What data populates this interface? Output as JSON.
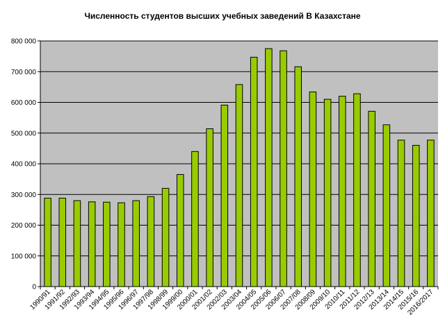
{
  "chart_data": {
    "type": "bar",
    "title": "Численность студентов высших учебных заведений В Казахстане",
    "xlabel": "",
    "ylabel": "",
    "ylim": [
      0,
      800000
    ],
    "y_ticks": [
      0,
      100000,
      200000,
      300000,
      400000,
      500000,
      600000,
      700000,
      800000
    ],
    "y_tick_labels": [
      "0",
      "100 000",
      "200 000",
      "300 000",
      "400 000",
      "500 000",
      "600 000",
      "700 000",
      "800 000"
    ],
    "grid": true,
    "legend": "none",
    "categories": [
      "1990/91",
      "1991/92",
      "1992/93",
      "1993/94",
      "1994/95",
      "1995/96",
      "1996/97",
      "1997/98",
      "1998/99",
      "1999/00",
      "2000/01",
      "2001/02",
      "2002/03",
      "2003/04",
      "2004/05",
      "2005/06",
      "2006/07",
      "2007/08",
      "2008/09",
      "2009/10",
      "2010/11",
      "2011/12",
      "2012/13",
      "2013/14",
      "2014/15",
      "2015/16",
      "2016/2017"
    ],
    "values": [
      288000,
      288000,
      280000,
      276000,
      275000,
      273000,
      280000,
      293000,
      320000,
      365000,
      440000,
      514000,
      591000,
      658000,
      747000,
      775000,
      768000,
      716000,
      634000,
      610000,
      620000,
      628000,
      571000,
      527000,
      477000,
      460000,
      477000
    ],
    "colors": {
      "plot_background": "#c0c0c0",
      "bar_fill": "#99cc00",
      "bar_stroke": "#000000",
      "grid": "#000000"
    }
  }
}
